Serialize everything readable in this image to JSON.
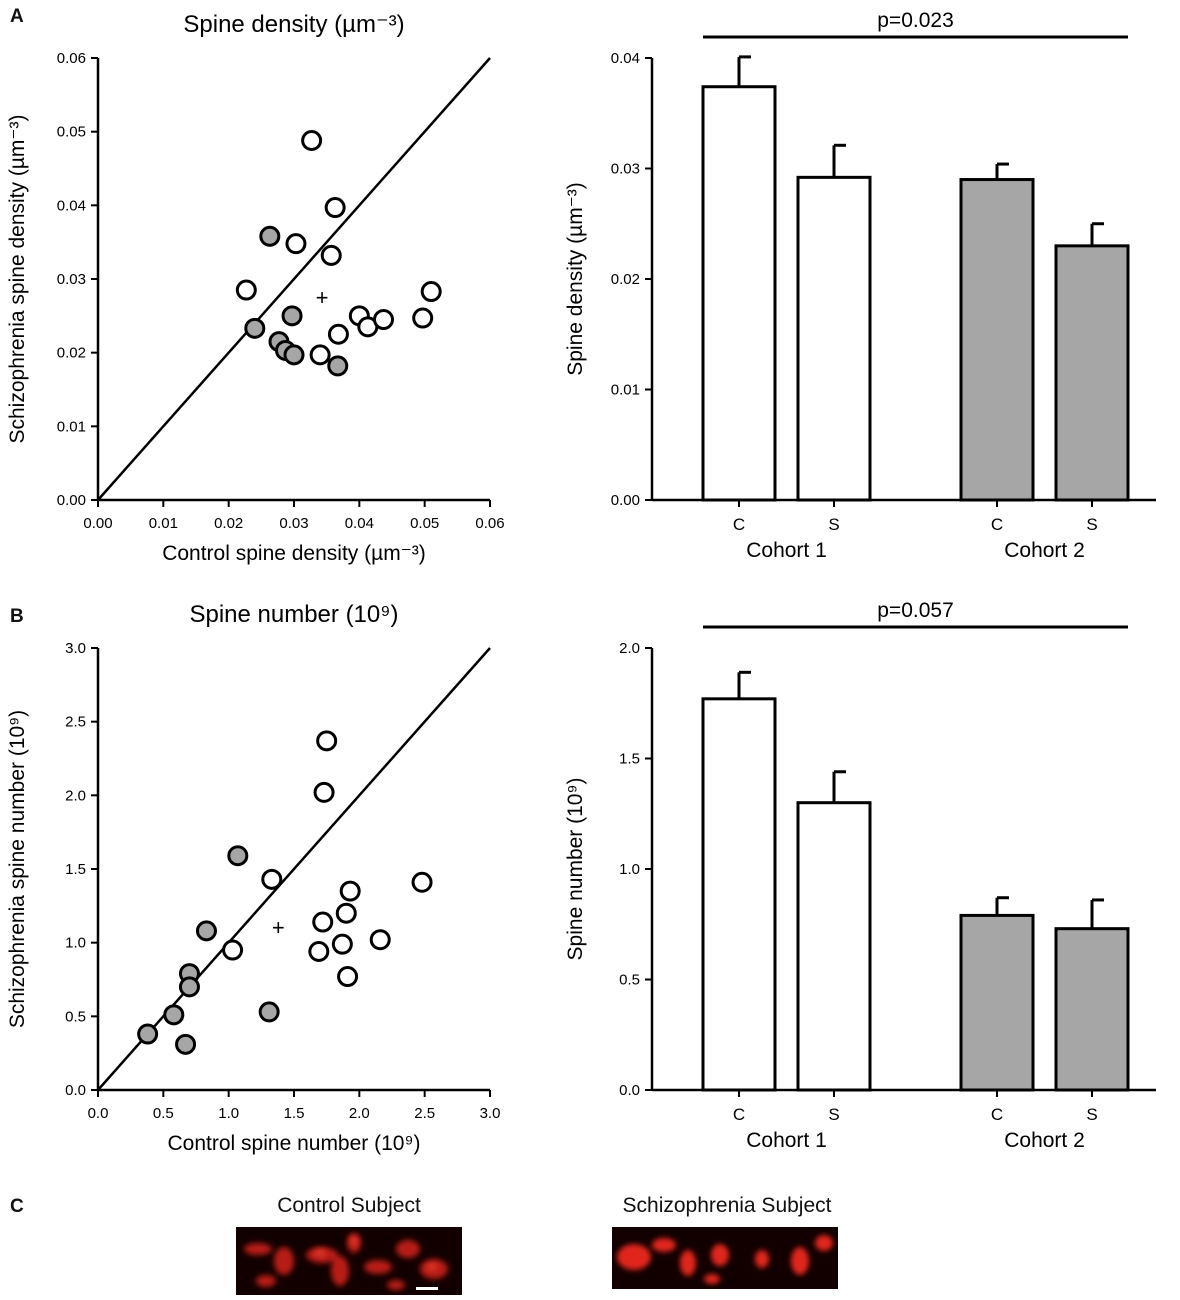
{
  "panel_labels": {
    "a": "A",
    "b": "B",
    "c": "C"
  },
  "chart_data": [
    {
      "id": "scatterA",
      "type": "scatter",
      "title": "Spine density (µm⁻³)",
      "xlabel": "Control spine density (µm⁻³)",
      "ylabel": "Schizophrenia spine density (µm⁻³)",
      "xlim": [
        0,
        0.06
      ],
      "ylim": [
        0,
        0.06
      ],
      "xticks": [
        "0.00",
        "0.01",
        "0.02",
        "0.03",
        "0.04",
        "0.05",
        "0.06"
      ],
      "yticks": [
        "0.00",
        "0.01",
        "0.02",
        "0.03",
        "0.04",
        "0.05",
        "0.06"
      ],
      "identity_line": true,
      "mean_marker": {
        "symbol": "+",
        "x": 0.0343,
        "y": 0.0274
      },
      "series": [
        {
          "name": "Cohort 1",
          "fill": "#ffffff",
          "points": [
            [
              0.0227,
              0.0285
            ],
            [
              0.0303,
              0.0348
            ],
            [
              0.0327,
              0.0488
            ],
            [
              0.0363,
              0.0397
            ],
            [
              0.0357,
              0.0332
            ],
            [
              0.034,
              0.0197
            ],
            [
              0.0368,
              0.0225
            ],
            [
              0.04,
              0.025
            ],
            [
              0.0413,
              0.0235
            ],
            [
              0.0437,
              0.0245
            ],
            [
              0.0497,
              0.0247
            ],
            [
              0.051,
              0.0283
            ]
          ]
        },
        {
          "name": "Cohort 2",
          "fill": "#a6a6a6",
          "points": [
            [
              0.0263,
              0.0358
            ],
            [
              0.024,
              0.0233
            ],
            [
              0.0277,
              0.0215
            ],
            [
              0.0287,
              0.0203
            ],
            [
              0.0297,
              0.025
            ],
            [
              0.03,
              0.0197
            ],
            [
              0.0367,
              0.0182
            ]
          ]
        }
      ]
    },
    {
      "id": "barA",
      "type": "bar",
      "ylabel": "Spine density (µm⁻³)",
      "ylim": [
        0,
        0.04
      ],
      "yticks": [
        "0.00",
        "0.01",
        "0.02",
        "0.03",
        "0.04"
      ],
      "bars": [
        {
          "label": "C",
          "group": "Cohort 1",
          "value": 0.0374,
          "err": 0.0027,
          "fill": "#ffffff"
        },
        {
          "label": "S",
          "group": "Cohort 1",
          "value": 0.0292,
          "err": 0.0029,
          "fill": "#ffffff"
        },
        {
          "label": "C",
          "group": "Cohort 2",
          "value": 0.029,
          "err": 0.0014,
          "fill": "#a6a6a6"
        },
        {
          "label": "S",
          "group": "Cohort 2",
          "value": 0.023,
          "err": 0.002,
          "fill": "#a6a6a6"
        }
      ],
      "groups": [
        "Cohort 1",
        "Cohort 2"
      ],
      "annotation": "p=0.023"
    },
    {
      "id": "scatterB",
      "type": "scatter",
      "title": "Spine number (10⁹)",
      "xlabel": "Control spine number (10⁹)",
      "ylabel": "Schizophrenia spine number (10⁹)",
      "xlim": [
        0,
        3
      ],
      "ylim": [
        0,
        3
      ],
      "xticks": [
        "0.0",
        "0.5",
        "1.0",
        "1.5",
        "2.0",
        "2.5",
        "3.0"
      ],
      "yticks": [
        "0.0",
        "0.5",
        "1.0",
        "1.5",
        "2.0",
        "2.5",
        "3.0"
      ],
      "identity_line": true,
      "mean_marker": {
        "symbol": "+",
        "x": 1.38,
        "y": 1.1
      },
      "series": [
        {
          "name": "Cohort 1",
          "fill": "#ffffff",
          "points": [
            [
              1.75,
              2.37
            ],
            [
              1.73,
              2.02
            ],
            [
              1.33,
              1.43
            ],
            [
              1.03,
              0.95
            ],
            [
              1.72,
              1.14
            ],
            [
              1.69,
              0.94
            ],
            [
              1.87,
              0.99
            ],
            [
              1.9,
              1.2
            ],
            [
              1.93,
              1.35
            ],
            [
              1.91,
              0.77
            ],
            [
              2.16,
              1.02
            ],
            [
              2.48,
              1.41
            ]
          ]
        },
        {
          "name": "Cohort 2",
          "fill": "#a6a6a6",
          "points": [
            [
              1.07,
              1.59
            ],
            [
              0.83,
              1.08
            ],
            [
              0.7,
              0.79
            ],
            [
              0.7,
              0.7
            ],
            [
              0.58,
              0.51
            ],
            [
              0.38,
              0.38
            ],
            [
              0.67,
              0.31
            ],
            [
              1.31,
              0.53
            ]
          ]
        }
      ]
    },
    {
      "id": "barB",
      "type": "bar",
      "ylabel": "Spine number (10⁹)",
      "ylim": [
        0,
        2.0
      ],
      "yticks": [
        "0.0",
        "0.5",
        "1.0",
        "1.5",
        "2.0"
      ],
      "bars": [
        {
          "label": "C",
          "group": "Cohort 1",
          "value": 1.77,
          "err": 0.12,
          "fill": "#ffffff"
        },
        {
          "label": "S",
          "group": "Cohort 1",
          "value": 1.3,
          "err": 0.14,
          "fill": "#ffffff"
        },
        {
          "label": "C",
          "group": "Cohort 2",
          "value": 0.79,
          "err": 0.08,
          "fill": "#a6a6a6"
        },
        {
          "label": "S",
          "group": "Cohort 2",
          "value": 0.73,
          "err": 0.13,
          "fill": "#a6a6a6"
        }
      ],
      "groups": [
        "Cohort 1",
        "Cohort 2"
      ],
      "annotation": "p=0.057"
    }
  ],
  "images": {
    "control_caption": "Control Subject",
    "schizophrenia_caption": "Schizophrenia Subject"
  },
  "colors": {
    "cohort2_fill": "#a6a6a6",
    "image_background": "#120000",
    "spine_red": "#e0281c"
  }
}
